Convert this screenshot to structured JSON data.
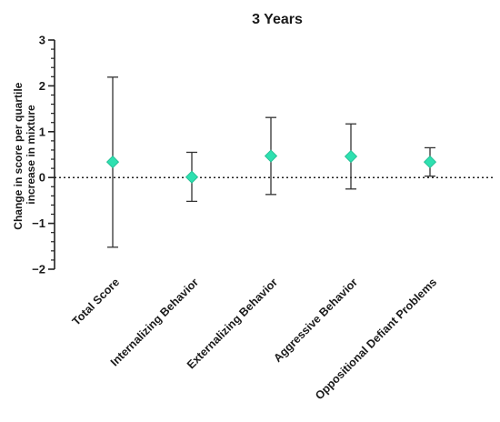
{
  "chart_data": {
    "type": "scatter",
    "title": "3 Years",
    "ylabel": [
      "Change in score per quartile",
      "increase in mixture"
    ],
    "xlabel": "",
    "ylim": [
      -2,
      3
    ],
    "yticks": [
      -2,
      -1,
      0,
      1,
      2,
      3
    ],
    "ytick_labels": [
      "−2",
      "−1",
      "0",
      "1",
      "2",
      "3"
    ],
    "reference_line": 0,
    "grid": false,
    "marker_color": "#2EE0B0",
    "categories": [
      "Total Score",
      "Internalizing Behavior",
      "Externalizing Behavior",
      "Aggressive Behavior",
      "Oppositional Defiant Problems"
    ],
    "values": [
      0.34,
      0.01,
      0.47,
      0.46,
      0.34
    ],
    "ci_lower": [
      -1.52,
      -0.52,
      -0.37,
      -0.25,
      0.03
    ],
    "ci_upper": [
      2.19,
      0.55,
      1.31,
      1.17,
      0.65
    ]
  }
}
